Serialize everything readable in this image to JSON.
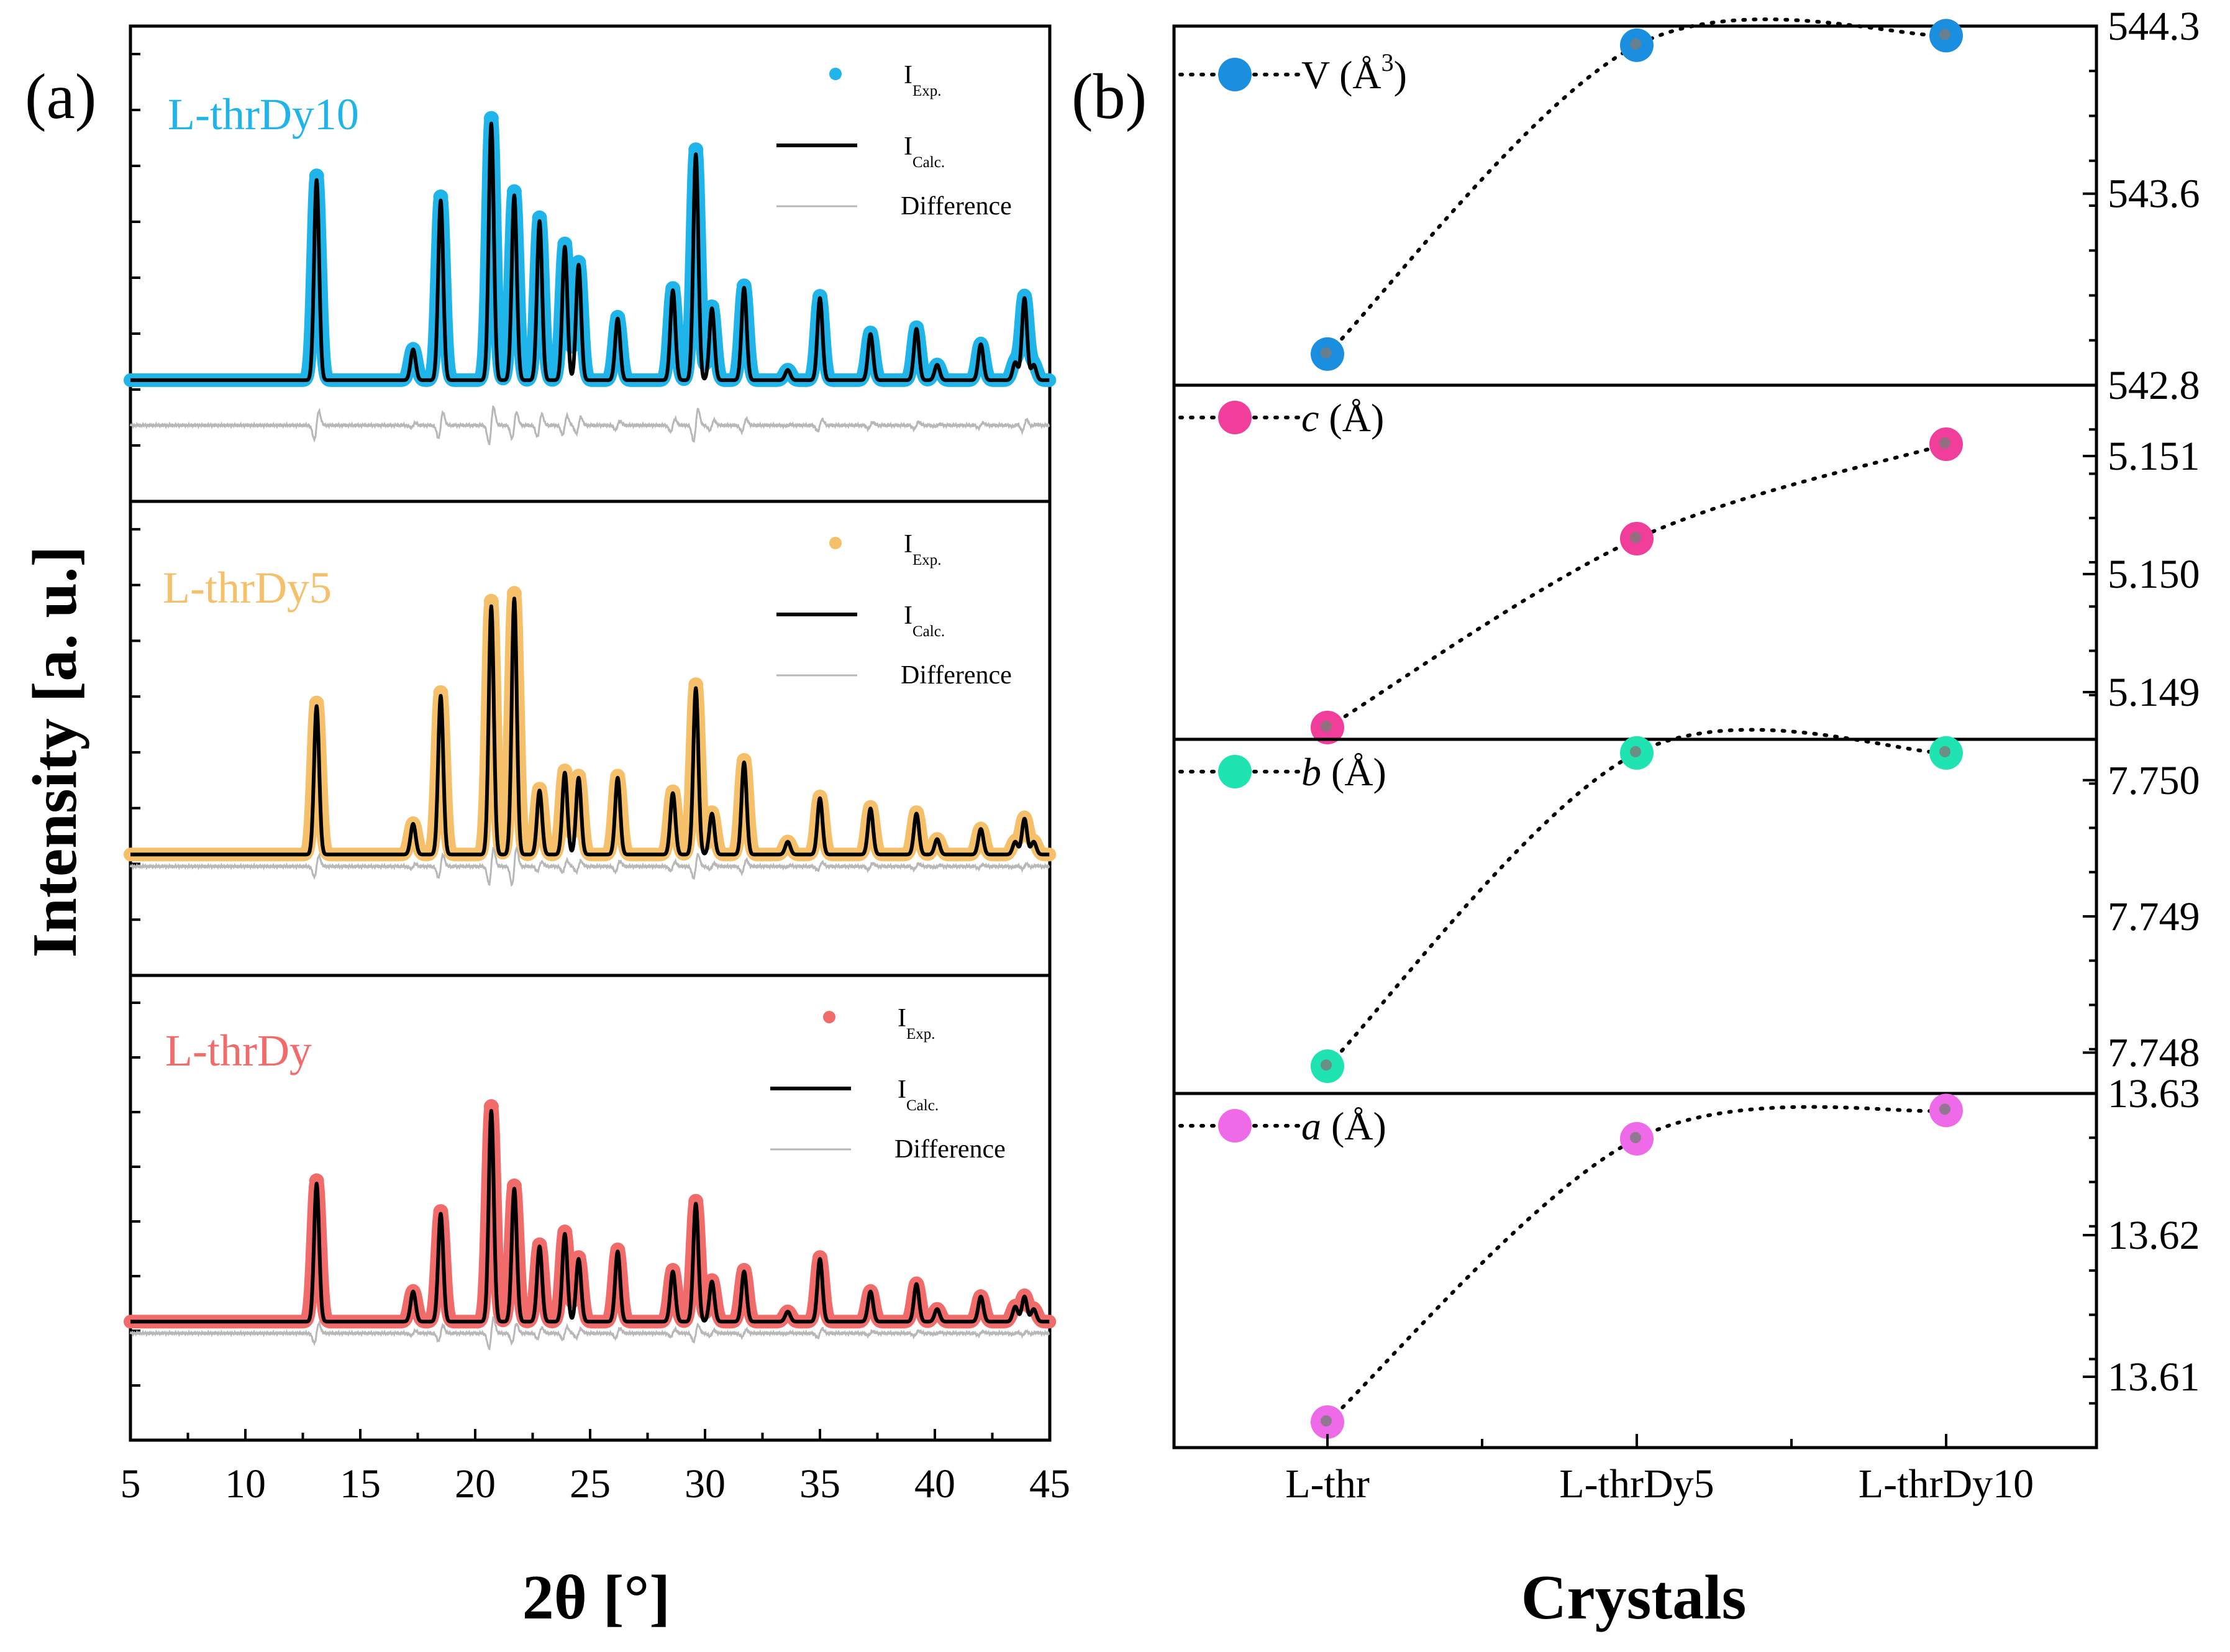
{
  "panel_a": {
    "letter": "(a)",
    "ylabel": "Intensity [a. u.]",
    "xlabel": "2θ [°]",
    "legend": {
      "exp_main": "I",
      "exp_sub": "Exp.",
      "calc_main": "I",
      "calc_sub": "Calc.",
      "diff": "Difference"
    },
    "xticks": [
      "5",
      "10",
      "15",
      "20",
      "25",
      "30",
      "35",
      "40",
      "45"
    ]
  },
  "panel_b": {
    "letter": "(b)",
    "xlabel": "Crystals",
    "categories": [
      "L-thr",
      "L-thrDy5",
      "L-thrDy10"
    ]
  },
  "chart_data": [
    {
      "type": "line",
      "title": "(a)",
      "xlabel": "2θ [°]",
      "ylabel": "Intensity [a. u.]",
      "xlim": [
        5,
        45
      ],
      "yticks_shown": false,
      "series_style": {
        "I_Exp.": "scatter",
        "I_Calc.": "black line",
        "Difference": "grey line"
      },
      "peak_positions_2theta": [
        13.1,
        17.3,
        18.5,
        20.7,
        21.7,
        22.8,
        23.9,
        24.5,
        26.2,
        28.6,
        29.6,
        30.3,
        31.7,
        33.6,
        35.0,
        37.2,
        39.2,
        40.1,
        42.0,
        43.5,
        43.9,
        44.3
      ],
      "patterns": [
        {
          "name": "L-thrDy10",
          "color": "#1fb4ea",
          "relative_intensities": [
            0.78,
            0.12,
            0.7,
            1.0,
            0.72,
            0.62,
            0.52,
            0.45,
            0.24,
            0.35,
            0.88,
            0.28,
            0.36,
            0.04,
            0.32,
            0.18,
            0.2,
            0.06,
            0.14,
            0.07,
            0.32,
            0.06
          ]
        },
        {
          "name": "L-thrDy5",
          "color": "#f6c06a",
          "relative_intensities": [
            0.58,
            0.12,
            0.62,
            0.97,
            1.0,
            0.25,
            0.32,
            0.3,
            0.3,
            0.24,
            0.65,
            0.16,
            0.36,
            0.05,
            0.22,
            0.18,
            0.16,
            0.06,
            0.1,
            0.05,
            0.14,
            0.05
          ]
        },
        {
          "name": "L-thrDy",
          "color": "#f26b6b",
          "relative_intensities": [
            0.55,
            0.12,
            0.43,
            0.84,
            0.53,
            0.3,
            0.35,
            0.25,
            0.28,
            0.2,
            0.47,
            0.16,
            0.2,
            0.04,
            0.25,
            0.12,
            0.15,
            0.05,
            0.1,
            0.06,
            0.1,
            0.05
          ]
        }
      ]
    },
    {
      "type": "scatter",
      "title": "(b)",
      "xlabel": "Crystals",
      "categories": [
        "L-thr",
        "L-thrDy5",
        "L-thrDy10"
      ],
      "series": [
        {
          "name": "V (Å3)",
          "label_var": "V",
          "label_unit": "(Å",
          "label_sup": "3",
          "label_close": ")",
          "color": "#1a8fe0",
          "values": [
            542.93,
            544.22,
            544.26
          ],
          "ylim": [
            542.8,
            544.3
          ],
          "yticks": [
            "542.8",
            "543.6",
            "544.3"
          ]
        },
        {
          "name": "c (Å)",
          "label_var": "c",
          "label_unit": "(Å)",
          "color": "#f23e9b",
          "values": [
            5.1487,
            5.1503,
            5.1511
          ],
          "ylim": [
            5.1486,
            5.1516
          ],
          "yticks": [
            "5.149",
            "5.150",
            "5.151"
          ]
        },
        {
          "name": "b (Å)",
          "label_var": "b",
          "label_unit": "(Å)",
          "color": "#1fe3b0",
          "values": [
            7.7479,
            7.7502,
            7.7502
          ],
          "ylim": [
            7.7477,
            7.7503
          ],
          "yticks": [
            "7.748",
            "7.749",
            "7.750"
          ]
        },
        {
          "name": "a (Å)",
          "label_var": "a",
          "label_unit": "(Å)",
          "color": "#ee6ae8",
          "values": [
            13.6068,
            13.6268,
            13.6288
          ],
          "ylim": [
            13.605,
            13.63
          ],
          "yticks": [
            "13.61",
            "13.62",
            "13.63"
          ]
        }
      ]
    }
  ]
}
